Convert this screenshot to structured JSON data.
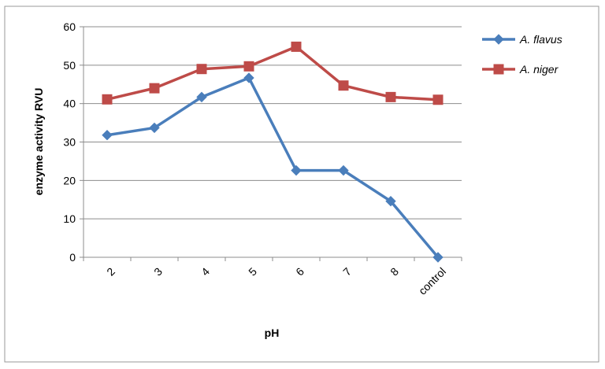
{
  "chart_data": {
    "type": "line",
    "categories": [
      "2",
      "3",
      "4",
      "5",
      "6",
      "7",
      "8",
      "control"
    ],
    "xlabel": "pH",
    "ylabel": "enzyme activity  RVU",
    "ylim": [
      0,
      60
    ],
    "yticks": [
      0,
      10,
      20,
      30,
      40,
      50,
      60
    ],
    "grid": true,
    "legend_position": "right",
    "series": [
      {
        "name": "A. flavus",
        "color": "#4a7ebb",
        "marker": "diamond",
        "values": [
          31.8,
          33.7,
          41.7,
          46.7,
          22.6,
          22.6,
          14.6,
          0
        ]
      },
      {
        "name": "A. niger",
        "color": "#be4b48",
        "marker": "square",
        "values": [
          41.1,
          44.0,
          49.0,
          49.7,
          54.8,
          44.7,
          41.7,
          41.0
        ]
      }
    ]
  }
}
